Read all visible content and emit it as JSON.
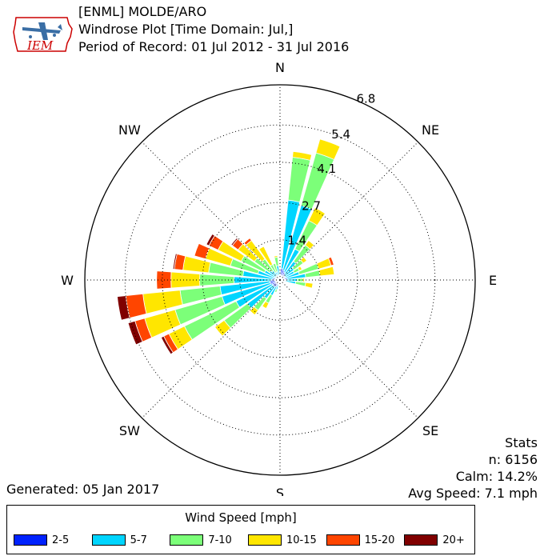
{
  "header": {
    "station": "[ENML] MOLDE/ARO",
    "plot_title": "Windrose Plot [Time Domain: Jul,]",
    "period": "Period of Record: 01 Jul 2012 - 31 Jul 2016"
  },
  "logo": {
    "text": "IEM"
  },
  "stats": {
    "title": "Stats",
    "n": "n: 6156",
    "calm": "Calm: 14.2%",
    "avg_speed": "Avg Speed: 7.1 mph"
  },
  "generated": "Generated: 05 Jan 2017",
  "legend": {
    "title": "Wind Speed [mph]",
    "items": [
      {
        "label": "2-5",
        "color": "#0022ff"
      },
      {
        "label": "5-7",
        "color": "#00d5ff"
      },
      {
        "label": "7-10",
        "color": "#7cff79"
      },
      {
        "label": "10-15",
        "color": "#ffe600"
      },
      {
        "label": "15-20",
        "color": "#ff4500"
      },
      {
        "label": "20+",
        "color": "#800000"
      }
    ]
  },
  "chart_data": {
    "type": "windrose",
    "direction_labels": [
      {
        "text": "N",
        "deg": 0
      },
      {
        "text": "NE",
        "deg": 45
      },
      {
        "text": "E",
        "deg": 90
      },
      {
        "text": "SE",
        "deg": 135
      },
      {
        "text": "S",
        "deg": 180
      },
      {
        "text": "SW",
        "deg": 225
      },
      {
        "text": "W",
        "deg": 270
      },
      {
        "text": "NW",
        "deg": 315
      }
    ],
    "rings": [
      1.4,
      2.7,
      4.1,
      5.4
    ],
    "rmax": 6.8,
    "rmax_label": "6.8",
    "ring_labels": [
      "1.4",
      "2.7",
      "4.1",
      "5.4"
    ],
    "grid": true,
    "calm_percent": 14.2,
    "speed_bins": [
      "2-5",
      "5-7",
      "7-10",
      "10-15",
      "15-20",
      "20+"
    ],
    "colors": [
      "#0022ff",
      "#00d5ff",
      "#7cff79",
      "#ffe600",
      "#ff4500",
      "#800000"
    ],
    "directions_deg": [
      0,
      10,
      20,
      30,
      40,
      50,
      60,
      70,
      80,
      90,
      100,
      110,
      120,
      130,
      140,
      150,
      160,
      170,
      180,
      190,
      200,
      210,
      220,
      230,
      240,
      250,
      260,
      270,
      280,
      290,
      300,
      310,
      320,
      330,
      340,
      350
    ],
    "cumulative_percent": [
      [
        0.1,
        0.25,
        0.3,
        0.32,
        0.32,
        0.32
      ],
      [
        0.4,
        2.8,
        4.3,
        4.5,
        4.5,
        4.5
      ],
      [
        0.35,
        2.7,
        4.6,
        5.1,
        5.1,
        5.1
      ],
      [
        0.3,
        1.2,
        2.3,
        2.8,
        2.8,
        2.8
      ],
      [
        0.25,
        0.8,
        1.5,
        1.7,
        1.7,
        1.7
      ],
      [
        0.2,
        0.6,
        1.0,
        1.15,
        1.15,
        1.15
      ],
      [
        0.2,
        0.55,
        0.75,
        0.85,
        0.85,
        0.85
      ],
      [
        0.2,
        0.7,
        1.4,
        1.85,
        1.95,
        1.95
      ],
      [
        0.25,
        0.9,
        1.4,
        1.9,
        1.9,
        1.9
      ],
      [
        0.2,
        0.6,
        0.8,
        0.85,
        0.85,
        0.85
      ],
      [
        0.2,
        0.55,
        0.9,
        1.15,
        1.15,
        1.15
      ],
      [
        0.1,
        0.15,
        0.15,
        0.15,
        0.15,
        0.15
      ],
      [
        0.05,
        0.05,
        0.05,
        0.05,
        0.05,
        0.05
      ],
      [
        0.05,
        0.05,
        0.05,
        0.05,
        0.05,
        0.05
      ],
      [
        0.05,
        0.05,
        0.05,
        0.05,
        0.05,
        0.05
      ],
      [
        0.05,
        0.05,
        0.05,
        0.05,
        0.05,
        0.05
      ],
      [
        0.05,
        0.05,
        0.05,
        0.05,
        0.05,
        0.05
      ],
      [
        0.05,
        0.05,
        0.05,
        0.05,
        0.05,
        0.05
      ],
      [
        0.05,
        0.05,
        0.05,
        0.05,
        0.05,
        0.05
      ],
      [
        0.08,
        0.15,
        0.2,
        0.2,
        0.2,
        0.2
      ],
      [
        0.15,
        0.35,
        0.45,
        0.45,
        0.45,
        0.45
      ],
      [
        0.25,
        0.6,
        0.9,
        1.1,
        1.1,
        1.1
      ],
      [
        0.3,
        0.8,
        1.3,
        1.5,
        1.5,
        1.5
      ],
      [
        0.3,
        1.4,
        2.4,
        2.8,
        2.8,
        2.8
      ],
      [
        0.3,
        1.7,
        3.7,
        4.3,
        4.5,
        4.6
      ],
      [
        0.35,
        2.1,
        3.8,
        4.9,
        5.25,
        5.5
      ],
      [
        0.35,
        2.1,
        3.5,
        4.8,
        5.4,
        5.7
      ],
      [
        0.3,
        1.6,
        2.8,
        3.8,
        4.3,
        4.3
      ],
      [
        0.25,
        1.3,
        2.5,
        3.4,
        3.7,
        3.75
      ],
      [
        0.2,
        0.8,
        1.8,
        2.7,
        3.1,
        3.1
      ],
      [
        0.15,
        0.6,
        1.5,
        2.4,
        2.75,
        2.85
      ],
      [
        0.15,
        0.45,
        1.1,
        1.8,
        2.05,
        2.1
      ],
      [
        0.1,
        0.4,
        0.9,
        1.7,
        1.8,
        1.8
      ],
      [
        0.1,
        0.3,
        0.6,
        1.3,
        1.3,
        1.3
      ],
      [
        0.1,
        0.3,
        0.6,
        0.6,
        0.6,
        0.6
      ],
      [
        0.1,
        0.5,
        0.8,
        0.85,
        0.85,
        0.85
      ]
    ]
  }
}
